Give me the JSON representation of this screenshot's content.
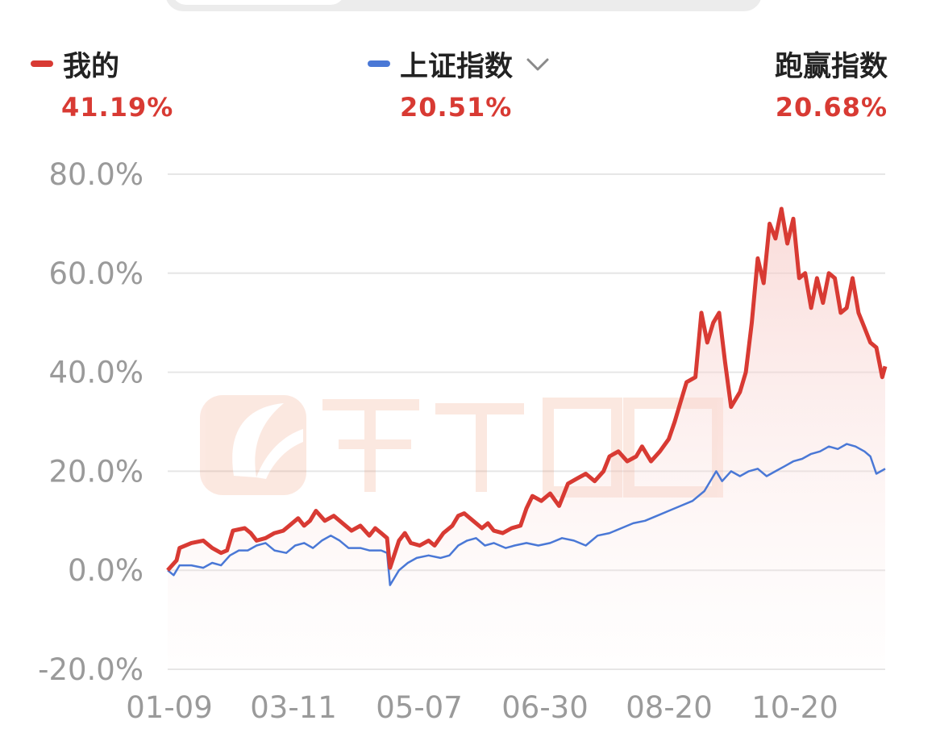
{
  "legend": {
    "mine": {
      "name": "我的",
      "value": "41.19%",
      "color": "#d83a33"
    },
    "index": {
      "name": "上证指数",
      "value": "20.51%",
      "color": "#4a78d6"
    },
    "beat": {
      "name": "跑赢指数",
      "value": "20.68%"
    }
  },
  "icons": {
    "dropdown": "chevron-down-icon"
  },
  "chart_data": {
    "type": "line",
    "ylim": [
      -20,
      80
    ],
    "y_ticks": [
      "80.0%",
      "60.0%",
      "40.0%",
      "20.0%",
      "0.0%",
      "-20.0%"
    ],
    "y_tick_values": [
      80,
      60,
      40,
      20,
      0,
      -20
    ],
    "x_ticks": [
      "01-09",
      "03-11",
      "05-07",
      "06-30",
      "08-20",
      "10-20"
    ],
    "x_tick_values": [
      0,
      41,
      82,
      123,
      164,
      205
    ],
    "x_max": 233,
    "grid": true,
    "series": [
      {
        "name": "我的",
        "color": "#d83a33",
        "fill": true,
        "points": [
          [
            0,
            0
          ],
          [
            3,
            2
          ],
          [
            4,
            4.5
          ],
          [
            8,
            5.5
          ],
          [
            12,
            6
          ],
          [
            15,
            4.5
          ],
          [
            18,
            3.5
          ],
          [
            20,
            4
          ],
          [
            22,
            8
          ],
          [
            26,
            8.5
          ],
          [
            28,
            7.5
          ],
          [
            30,
            6
          ],
          [
            33,
            6.5
          ],
          [
            36,
            7.5
          ],
          [
            39,
            8
          ],
          [
            41,
            9
          ],
          [
            44,
            10.5
          ],
          [
            46,
            9
          ],
          [
            48,
            10
          ],
          [
            50,
            12
          ],
          [
            53,
            10
          ],
          [
            56,
            11
          ],
          [
            59,
            9.5
          ],
          [
            62,
            8
          ],
          [
            65,
            9
          ],
          [
            68,
            7
          ],
          [
            70,
            8.5
          ],
          [
            72,
            7.5
          ],
          [
            74,
            6.5
          ],
          [
            75,
            0.5
          ],
          [
            78,
            6
          ],
          [
            80,
            7.5
          ],
          [
            82,
            5.5
          ],
          [
            85,
            5
          ],
          [
            88,
            6
          ],
          [
            90,
            5
          ],
          [
            93,
            7.5
          ],
          [
            96,
            9
          ],
          [
            98,
            11
          ],
          [
            100,
            11.5
          ],
          [
            103,
            10
          ],
          [
            106,
            8.5
          ],
          [
            108,
            9.5
          ],
          [
            110,
            8
          ],
          [
            113,
            7.5
          ],
          [
            116,
            8.5
          ],
          [
            119,
            9
          ],
          [
            121,
            12.5
          ],
          [
            123,
            15
          ],
          [
            126,
            14
          ],
          [
            129,
            15.5
          ],
          [
            132,
            13
          ],
          [
            135,
            17.5
          ],
          [
            138,
            18.5
          ],
          [
            141,
            19.5
          ],
          [
            144,
            18
          ],
          [
            147,
            20
          ],
          [
            149,
            23
          ],
          [
            152,
            24
          ],
          [
            155,
            22
          ],
          [
            158,
            23
          ],
          [
            160,
            25
          ],
          [
            163,
            22
          ],
          [
            166,
            24
          ],
          [
            169,
            26.5
          ],
          [
            171,
            30
          ],
          [
            173,
            34
          ],
          [
            175,
            38
          ],
          [
            178,
            39
          ],
          [
            180,
            52
          ],
          [
            182,
            46
          ],
          [
            184,
            50
          ],
          [
            186,
            52
          ],
          [
            188,
            42
          ],
          [
            190,
            33
          ],
          [
            193,
            36
          ],
          [
            195,
            40
          ],
          [
            197,
            50
          ],
          [
            199,
            63
          ],
          [
            201,
            58
          ],
          [
            203,
            70
          ],
          [
            205,
            67
          ],
          [
            207,
            73
          ],
          [
            209,
            66
          ],
          [
            211,
            71
          ],
          [
            213,
            59
          ],
          [
            215,
            60
          ],
          [
            217,
            53
          ],
          [
            219,
            59
          ],
          [
            221,
            54
          ],
          [
            223,
            60
          ],
          [
            225,
            59
          ],
          [
            227,
            52
          ],
          [
            229,
            53
          ],
          [
            231,
            59
          ],
          [
            233,
            52
          ],
          [
            235,
            49
          ],
          [
            237,
            46
          ],
          [
            239,
            45
          ],
          [
            241,
            39
          ],
          [
            242,
            41.19
          ]
        ]
      },
      {
        "name": "上证指数",
        "color": "#4a78d6",
        "fill": false,
        "points": [
          [
            0,
            0
          ],
          [
            2,
            -1
          ],
          [
            4,
            1
          ],
          [
            8,
            1
          ],
          [
            12,
            0.5
          ],
          [
            15,
            1.5
          ],
          [
            18,
            1
          ],
          [
            21,
            3
          ],
          [
            24,
            4
          ],
          [
            27,
            4
          ],
          [
            30,
            5
          ],
          [
            33,
            5.5
          ],
          [
            36,
            4
          ],
          [
            40,
            3.5
          ],
          [
            43,
            5
          ],
          [
            46,
            5.5
          ],
          [
            49,
            4.5
          ],
          [
            52,
            6
          ],
          [
            55,
            7
          ],
          [
            58,
            6
          ],
          [
            61,
            4.5
          ],
          [
            65,
            4.5
          ],
          [
            68,
            4
          ],
          [
            72,
            4
          ],
          [
            74,
            3.5
          ],
          [
            75,
            -3
          ],
          [
            78,
            0
          ],
          [
            81,
            1.5
          ],
          [
            84,
            2.5
          ],
          [
            88,
            3
          ],
          [
            92,
            2.5
          ],
          [
            95,
            3
          ],
          [
            98,
            5
          ],
          [
            101,
            6
          ],
          [
            104,
            6.5
          ],
          [
            107,
            5
          ],
          [
            110,
            5.5
          ],
          [
            114,
            4.5
          ],
          [
            117,
            5
          ],
          [
            121,
            5.5
          ],
          [
            125,
            5
          ],
          [
            129,
            5.5
          ],
          [
            133,
            6.5
          ],
          [
            137,
            6
          ],
          [
            141,
            5
          ],
          [
            145,
            7
          ],
          [
            149,
            7.5
          ],
          [
            153,
            8.5
          ],
          [
            157,
            9.5
          ],
          [
            161,
            10
          ],
          [
            165,
            11
          ],
          [
            169,
            12
          ],
          [
            173,
            13
          ],
          [
            177,
            14
          ],
          [
            181,
            16
          ],
          [
            185,
            20
          ],
          [
            187,
            18
          ],
          [
            190,
            20
          ],
          [
            193,
            19
          ],
          [
            196,
            20
          ],
          [
            199,
            20.5
          ],
          [
            202,
            19
          ],
          [
            205,
            20
          ],
          [
            208,
            21
          ],
          [
            211,
            22
          ],
          [
            214,
            22.5
          ],
          [
            217,
            23.5
          ],
          [
            220,
            24
          ],
          [
            223,
            25
          ],
          [
            226,
            24.5
          ],
          [
            229,
            25.5
          ],
          [
            232,
            25
          ],
          [
            235,
            24
          ],
          [
            237,
            23
          ],
          [
            239,
            19.5
          ],
          [
            242,
            20.51
          ]
        ]
      }
    ]
  }
}
